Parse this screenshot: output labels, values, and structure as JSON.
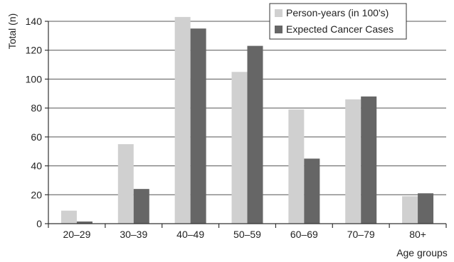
{
  "chart_data": {
    "type": "bar",
    "title": "",
    "xlabel": "Age groups",
    "ylabel": "Total (n)",
    "ylim": [
      0,
      140
    ],
    "yticks": [
      0,
      20,
      40,
      60,
      80,
      100,
      120,
      140
    ],
    "grid": "horizontal",
    "legend_position": "top-right",
    "categories": [
      "20–29",
      "30–39",
      "40–49",
      "50–59",
      "60–69",
      "70–79",
      "80+"
    ],
    "series": [
      {
        "name": "Person-years (in 100's)",
        "color": "#d0d0d0",
        "values": [
          9,
          55,
          143,
          105,
          79,
          86,
          19
        ]
      },
      {
        "name": "Expected Cancer Cases",
        "color": "#666666",
        "values": [
          1.5,
          24,
          135,
          123,
          45,
          88,
          21
        ]
      }
    ]
  }
}
